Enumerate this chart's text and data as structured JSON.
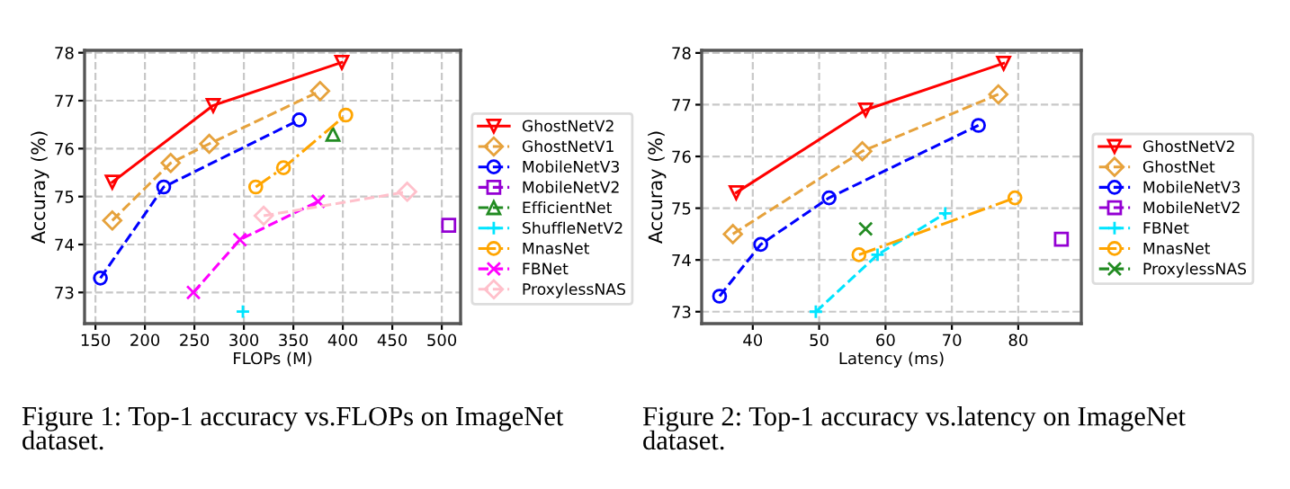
{
  "chart_data": [
    {
      "type": "line",
      "xlabel": "FLOPs (M)",
      "ylabel": "Accuray (%)",
      "xlim": [
        139,
        519
      ],
      "ylim": [
        72.35,
        78.05
      ],
      "xticks": [
        150,
        200,
        250,
        300,
        350,
        400,
        450,
        500
      ],
      "yticks": [
        73,
        74,
        75,
        76,
        77,
        78
      ],
      "grid": true,
      "legend": "right",
      "annotations": [
        "Figure 1: Top-1 accuracy vs.FLOPs on ImageNet dataset."
      ],
      "series": [
        {
          "name": "GhostNetV2",
          "color": "#ff0000",
          "marker": "triangle_down",
          "line_style": "solid",
          "x": [
            167,
            269,
            399
          ],
          "values": [
            75.3,
            76.9,
            77.8
          ]
        },
        {
          "name": "GhostNetV1",
          "color": "#e6a23c",
          "marker": "diamond",
          "line_style": "dashed",
          "x": [
            167,
            226,
            265,
            377
          ],
          "values": [
            74.5,
            75.7,
            76.1,
            77.2
          ]
        },
        {
          "name": "MobileNetV3",
          "color": "#0000ff",
          "marker": "circle",
          "line_style": "dashed",
          "x": [
            155,
            219,
            356
          ],
          "values": [
            73.3,
            75.2,
            76.6
          ]
        },
        {
          "name": "MobileNetV2",
          "color": "#9400d3",
          "marker": "square",
          "line_style": "dashed",
          "x": [
            507
          ],
          "values": [
            74.4
          ]
        },
        {
          "name": "EfficientNet",
          "color": "#228b22",
          "marker": "triangle",
          "line_style": "dashed",
          "x": [
            390
          ],
          "values": [
            76.3
          ]
        },
        {
          "name": "ShuffleNetV2",
          "color": "#00e5ff",
          "marker": "plus",
          "line_style": "dashed",
          "x": [
            299
          ],
          "values": [
            72.6
          ]
        },
        {
          "name": "MnasNet",
          "color": "#ffa500",
          "marker": "circle",
          "line_style": "dashdot",
          "x": [
            312,
            340,
            403
          ],
          "values": [
            75.2,
            75.6,
            76.7
          ]
        },
        {
          "name": "FBNet",
          "color": "#ff00ff",
          "marker": "cross",
          "line_style": "dashed",
          "x": [
            249,
            296,
            375
          ],
          "values": [
            73.0,
            74.1,
            74.9
          ]
        },
        {
          "name": "ProxylessNAS",
          "color": "#ffc0cb",
          "marker": "diamond",
          "line_style": "dashed",
          "x": [
            320,
            465
          ],
          "values": [
            74.6,
            75.1
          ]
        }
      ]
    },
    {
      "type": "line",
      "xlabel": "Latency (ms)",
      "ylabel": "Accuray (%)",
      "xlim": [
        32.3,
        89.5
      ],
      "ylim": [
        72.77,
        78.05
      ],
      "xticks": [
        40,
        50,
        60,
        70,
        80
      ],
      "yticks": [
        73,
        74,
        75,
        76,
        77,
        78
      ],
      "grid": true,
      "legend": "right",
      "annotations": [
        "Figure 2: Top-1 accuracy vs.latency on ImageNet dataset."
      ],
      "series": [
        {
          "name": "GhostNetV2",
          "color": "#ff0000",
          "marker": "triangle_down",
          "line_style": "solid",
          "x": [
            37.5,
            57,
            77.8
          ],
          "values": [
            75.3,
            76.9,
            77.8
          ]
        },
        {
          "name": "GhostNet",
          "color": "#e6a23c",
          "marker": "diamond",
          "line_style": "dashed",
          "x": [
            37,
            56.5,
            77
          ],
          "values": [
            74.5,
            76.1,
            77.2
          ]
        },
        {
          "name": "MobileNetV3",
          "color": "#0000ff",
          "marker": "circle",
          "line_style": "dashed",
          "x": [
            35,
            41.2,
            51.5,
            74
          ],
          "values": [
            73.3,
            74.3,
            75.2,
            76.6
          ]
        },
        {
          "name": "MobileNetV2",
          "color": "#9400d3",
          "marker": "square",
          "line_style": "dashed",
          "x": [
            86.5
          ],
          "values": [
            74.4
          ]
        },
        {
          "name": "FBNet",
          "color": "#00e5ff",
          "marker": "plus",
          "line_style": "dashed",
          "x": [
            49.5,
            58.8,
            69
          ],
          "values": [
            73.0,
            74.1,
            74.9
          ]
        },
        {
          "name": "MnasNet",
          "color": "#ffa500",
          "marker": "circle",
          "line_style": "dashdot",
          "x": [
            56,
            79.5
          ],
          "values": [
            74.1,
            75.2
          ]
        },
        {
          "name": "ProxylessNAS",
          "color": "#228b22",
          "marker": "cross",
          "line_style": "dashed",
          "x": [
            57
          ],
          "values": [
            74.6
          ]
        }
      ]
    }
  ]
}
